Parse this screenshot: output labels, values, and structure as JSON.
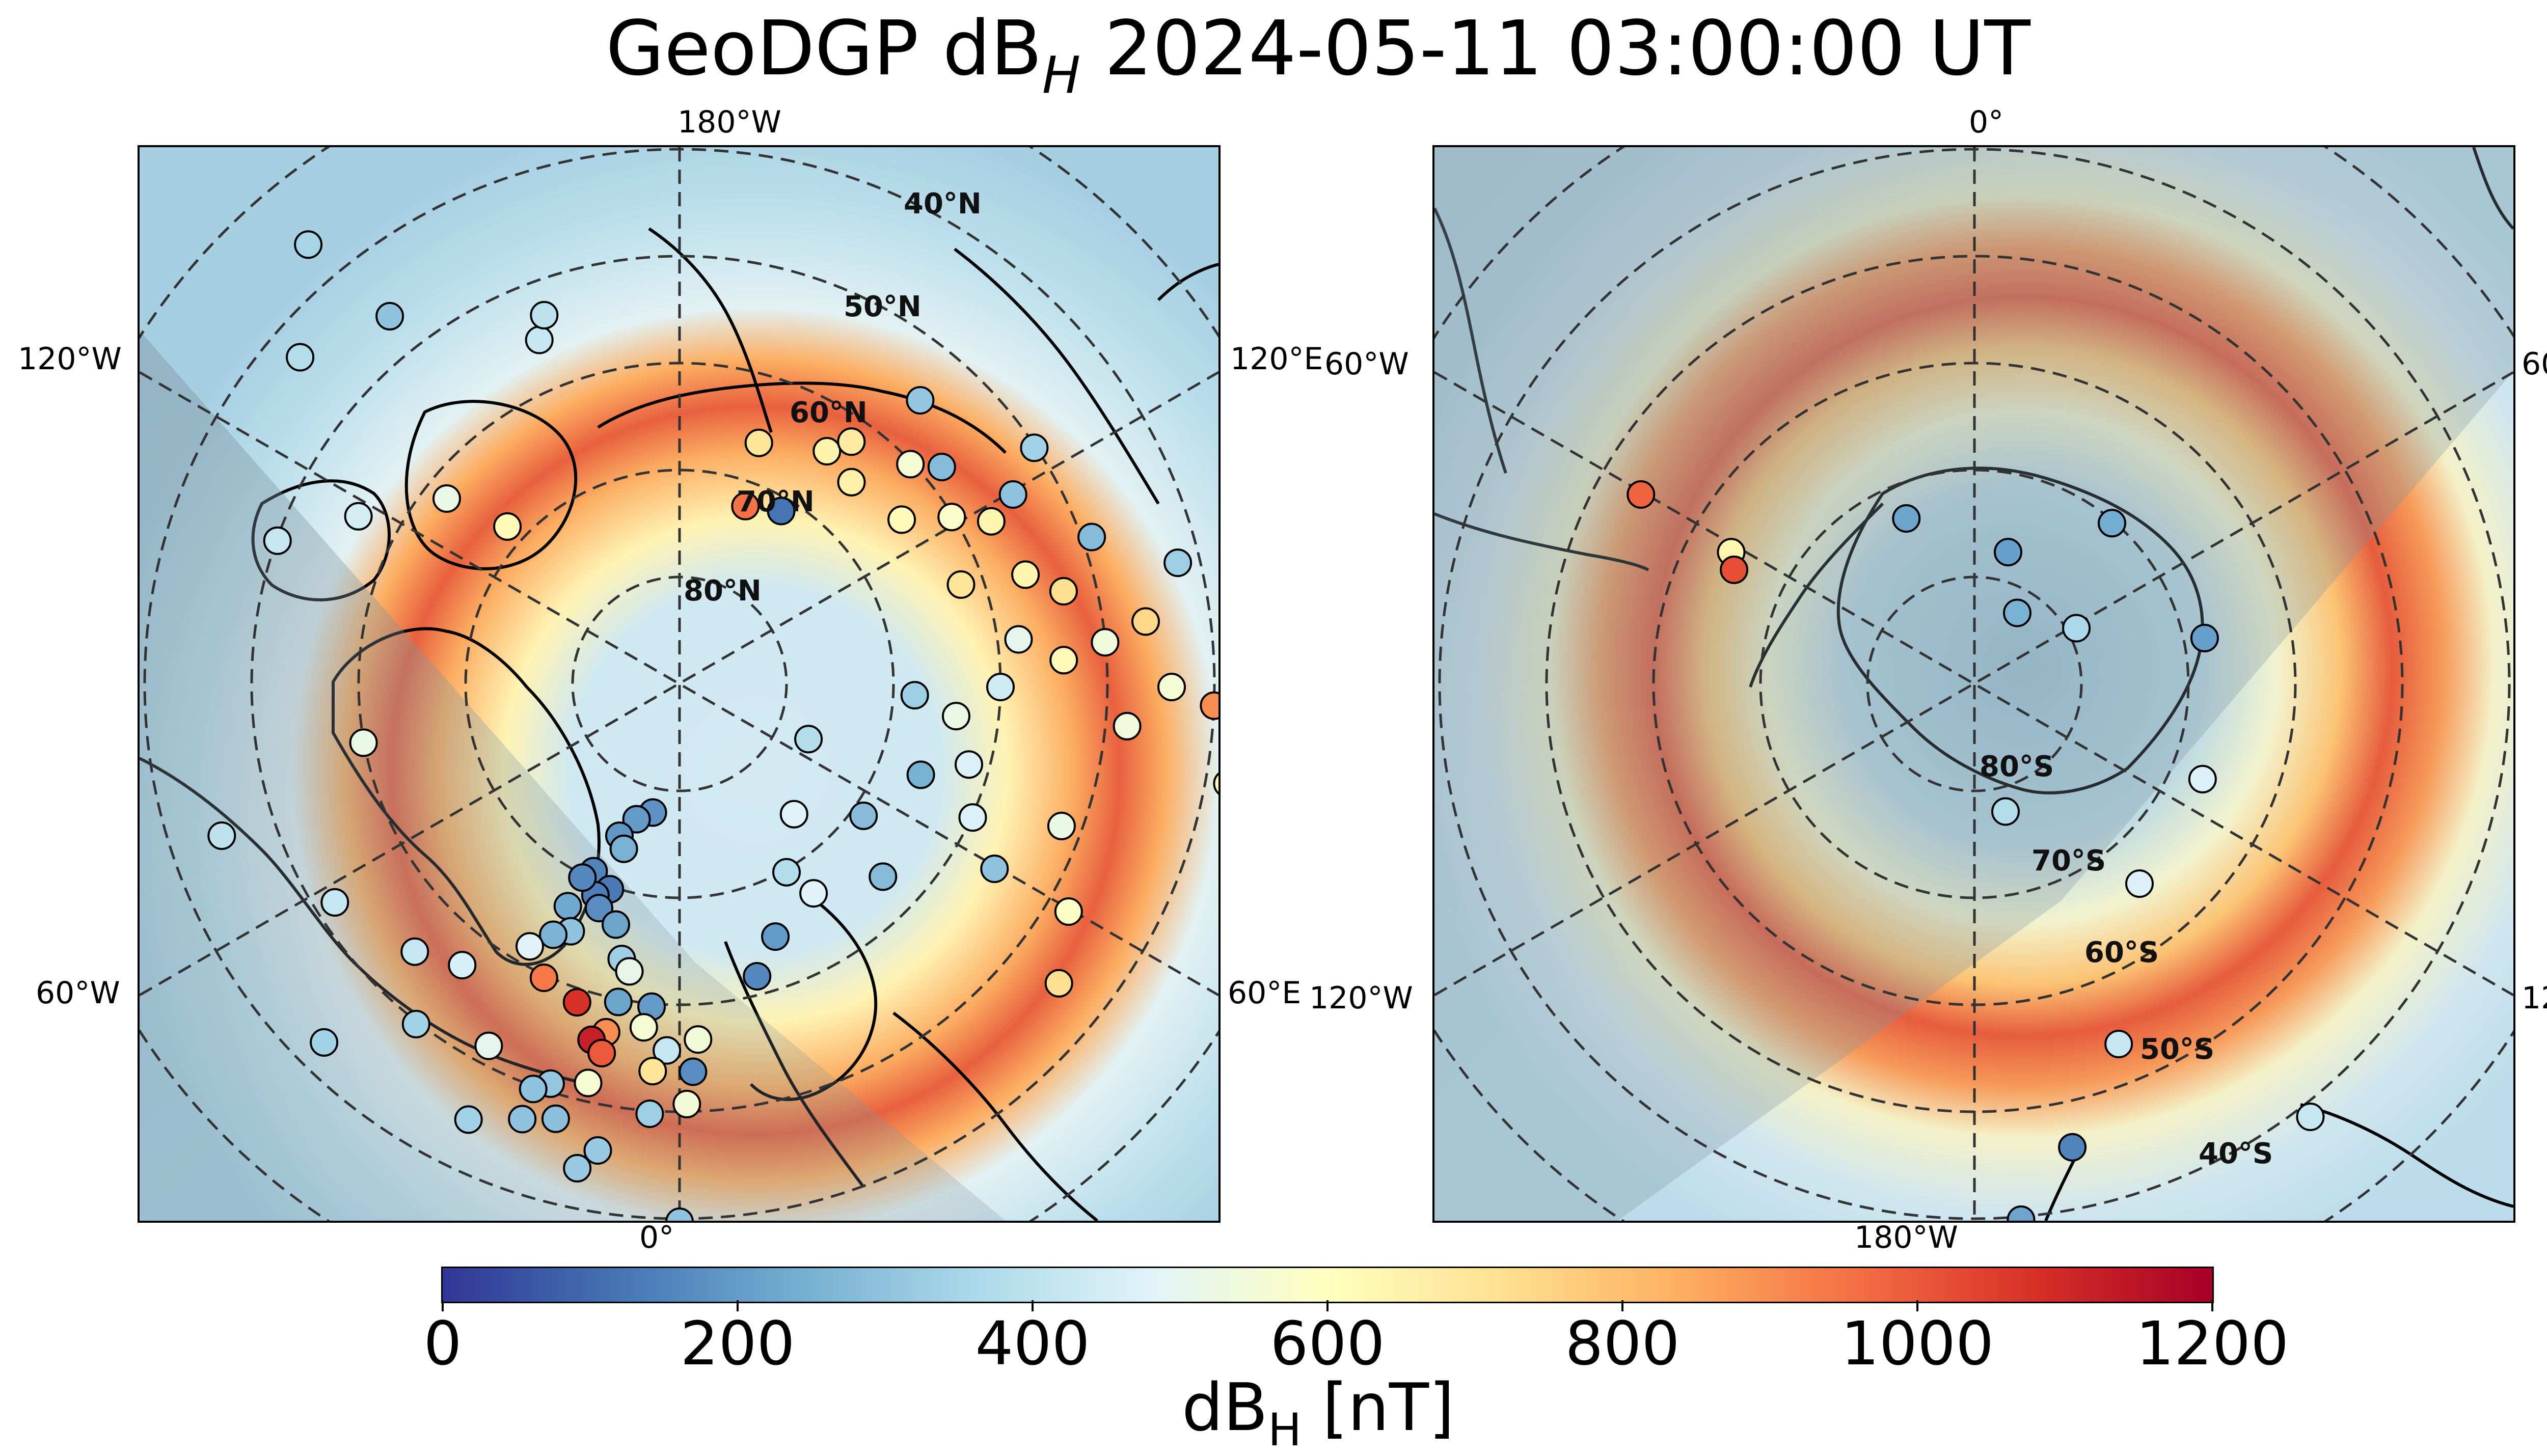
{
  "title": {
    "main": "GeoDGP dB",
    "subscript": "H",
    "timestamp": "2024-05-11 03:00:00 UT"
  },
  "colorbar": {
    "label_main": "dB",
    "label_subscript": "H",
    "label_unit": " [nT]",
    "range": [
      0,
      1200
    ],
    "ticks": [
      "0",
      "200",
      "400",
      "600",
      "800",
      "1000",
      "1200"
    ],
    "colors": [
      "#313695",
      "#4575b4",
      "#74add1",
      "#abd9e9",
      "#e0f3f8",
      "#ffffbf",
      "#fee090",
      "#fdae61",
      "#f46d43",
      "#d73027",
      "#a50026"
    ]
  },
  "maps": [
    {
      "hemisphere": "north",
      "lon_labels": {
        "top": "180°W",
        "bottom": "0°",
        "upper_left": "120°W",
        "upper_right": "120°E",
        "lower_left": "60°W",
        "lower_right": "60°E"
      },
      "lat_labels": [
        "80°N",
        "70°N",
        "60°N",
        "50°N",
        "40°N"
      ],
      "stations": [
        {
          "lat": 72,
          "lon": 200,
          "v": 950
        },
        {
          "lat": 71,
          "lon": 210,
          "v": 120
        },
        {
          "lat": 66,
          "lon": 198,
          "v": 700
        },
        {
          "lat": 64,
          "lon": 212,
          "v": 650
        },
        {
          "lat": 65,
          "lon": 220,
          "v": 660
        },
        {
          "lat": 62,
          "lon": 215,
          "v": 680
        },
        {
          "lat": 64,
          "lon": 233,
          "v": 620
        },
        {
          "lat": 60,
          "lon": 226,
          "v": 560
        },
        {
          "lat": 58,
          "lon": 230,
          "v": 280
        },
        {
          "lat": 55,
          "lon": 220,
          "v": 310
        },
        {
          "lat": 60,
          "lon": 238,
          "v": 580
        },
        {
          "lat": 57,
          "lon": 242,
          "v": 640
        },
        {
          "lat": 54,
          "lon": 240,
          "v": 300
        },
        {
          "lat": 50,
          "lon": 236,
          "v": 340
        },
        {
          "lat": 62,
          "lon": 250,
          "v": 700
        },
        {
          "lat": 56,
          "lon": 252,
          "v": 640
        },
        {
          "lat": 53,
          "lon": 256,
          "v": 720
        },
        {
          "lat": 49,
          "lon": 250,
          "v": 280
        },
        {
          "lat": 58,
          "lon": 262,
          "v": 500
        },
        {
          "lat": 54,
          "lon": 266,
          "v": 620
        },
        {
          "lat": 50,
          "lon": 264,
          "v": 540
        },
        {
          "lat": 46,
          "lon": 262,
          "v": 740
        },
        {
          "lat": 44,
          "lon": 270,
          "v": 560
        },
        {
          "lat": 42,
          "lon": 256,
          "v": 330
        },
        {
          "lat": 48,
          "lon": 275,
          "v": 540
        },
        {
          "lat": 40,
          "lon": 272,
          "v": 900
        },
        {
          "lat": 38,
          "lon": 280,
          "v": 620
        },
        {
          "lat": 60,
          "lon": 270,
          "v": 440
        },
        {
          "lat": 64,
          "lon": 276,
          "v": 520
        },
        {
          "lat": 68,
          "lon": 272,
          "v": 330
        },
        {
          "lat": 62,
          "lon": 285,
          "v": 470
        },
        {
          "lat": 66,
          "lon": 290,
          "v": 250
        },
        {
          "lat": 60,
          "lon": 294,
          "v": 470
        },
        {
          "lat": 56,
          "lon": 300,
          "v": 300
        },
        {
          "lat": 52,
          "lon": 290,
          "v": 520
        },
        {
          "lat": 48,
          "lon": 300,
          "v": 590
        },
        {
          "lat": 45,
          "lon": 308,
          "v": 720
        },
        {
          "lat": 69,
          "lon": 305,
          "v": 280
        },
        {
          "lat": 64,
          "lon": 313,
          "v": 280
        },
        {
          "lat": 77,
          "lon": 292,
          "v": 380
        },
        {
          "lat": 74,
          "lon": 318,
          "v": 480
        },
        {
          "lat": 70,
          "lon": 330,
          "v": 380
        },
        {
          "lat": 67,
          "lon": 327,
          "v": 480
        },
        {
          "lat": 65,
          "lon": 339,
          "v": 200
        },
        {
          "lat": 62,
          "lon": 345,
          "v": 160
        },
        {
          "lat": 78,
          "lon": 12,
          "v": 180
        },
        {
          "lat": 77,
          "lon": 18,
          "v": 200
        },
        {
          "lat": 75,
          "lon": 22,
          "v": 190
        },
        {
          "lat": 74,
          "lon": 19,
          "v": 250
        },
        {
          "lat": 71,
          "lon": 25,
          "v": 150
        },
        {
          "lat": 70,
          "lon": 19,
          "v": 130
        },
        {
          "lat": 69,
          "lon": 22,
          "v": 140
        },
        {
          "lat": 70,
          "lon": 27,
          "v": 160
        },
        {
          "lat": 68,
          "lon": 20,
          "v": 170
        },
        {
          "lat": 67,
          "lon": 27,
          "v": 230
        },
        {
          "lat": 67,
          "lon": 15,
          "v": 220
        },
        {
          "lat": 65,
          "lon": 24,
          "v": 300
        },
        {
          "lat": 64,
          "lon": 27,
          "v": 260
        },
        {
          "lat": 64,
          "lon": 12,
          "v": 330
        },
        {
          "lat": 63,
          "lon": 10,
          "v": 510
        },
        {
          "lat": 62,
          "lon": 30,
          "v": 480
        },
        {
          "lat": 60,
          "lon": 5,
          "v": 200
        },
        {
          "lat": 60,
          "lon": 11,
          "v": 220
        },
        {
          "lat": 60,
          "lon": 25,
          "v": 940
        },
        {
          "lat": 59,
          "lon": 18,
          "v": 1080
        },
        {
          "lat": 57,
          "lon": 12,
          "v": 900
        },
        {
          "lat": 56,
          "lon": 14,
          "v": 1120
        },
        {
          "lat": 55,
          "lon": 12,
          "v": 1000
        },
        {
          "lat": 58,
          "lon": 6,
          "v": 560
        },
        {
          "lat": 57,
          "lon": 357,
          "v": 550
        },
        {
          "lat": 56,
          "lon": 2,
          "v": 420
        },
        {
          "lat": 54,
          "lon": 4,
          "v": 700
        },
        {
          "lat": 54,
          "lon": 358,
          "v": 170
        },
        {
          "lat": 51,
          "lon": 359,
          "v": 550
        },
        {
          "lat": 50,
          "lon": 4,
          "v": 330
        },
        {
          "lat": 52,
          "lon": 13,
          "v": 560
        },
        {
          "lat": 51,
          "lon": 18,
          "v": 310
        },
        {
          "lat": 48,
          "lon": 16,
          "v": 290
        },
        {
          "lat": 50,
          "lon": 20,
          "v": 300
        },
        {
          "lat": 46,
          "lon": 10,
          "v": 320
        },
        {
          "lat": 47,
          "lon": 20,
          "v": 300
        },
        {
          "lat": 45,
          "lon": 26,
          "v": 340
        },
        {
          "lat": 44,
          "lon": 12,
          "v": 320
        },
        {
          "lat": 52,
          "lon": 28,
          "v": 500
        },
        {
          "lat": 57,
          "lon": 38,
          "v": 460
        },
        {
          "lat": 55,
          "lon": 45,
          "v": 420
        },
        {
          "lat": 50,
          "lon": 38,
          "v": 340
        },
        {
          "lat": 43,
          "lon": 45,
          "v": 340
        },
        {
          "lat": 40,
          "lon": 0,
          "v": 300
        },
        {
          "lat": 36,
          "lon": 358,
          "v": 260
        },
        {
          "lat": 52,
          "lon": 58,
          "v": 420
        },
        {
          "lat": 60,
          "lon": 80,
          "v": 520
        },
        {
          "lat": 45,
          "lon": 72,
          "v": 400
        },
        {
          "lat": 50,
          "lon": 110,
          "v": 420
        },
        {
          "lat": 56,
          "lon": 118,
          "v": 450
        },
        {
          "lat": 62,
          "lon": 129,
          "v": 520
        },
        {
          "lat": 68,
          "lon": 133,
          "v": 620
        },
        {
          "lat": 43,
          "lon": 131,
          "v": 380
        },
        {
          "lat": 36,
          "lon": 140,
          "v": 350
        },
        {
          "lat": 46,
          "lon": 142,
          "v": 300
        },
        {
          "lat": 55,
          "lon": 158,
          "v": 420
        },
        {
          "lat": 53,
          "lon": 160,
          "v": 400
        }
      ]
    },
    {
      "hemisphere": "south",
      "lon_labels": {
        "top": "0°",
        "bottom": "180°W",
        "upper_left": "60°W",
        "upper_right": "60°E",
        "lower_left": "120°W",
        "lower_right": "120°E"
      },
      "lat_labels": [
        "80°S",
        "70°S",
        "60°S",
        "50°S",
        "40°S"
      ],
      "stations": [
        {
          "lat": -54,
          "lon": 300,
          "v": 980
        },
        {
          "lat": -64,
          "lon": 299,
          "v": 640
        },
        {
          "lat": -65,
          "lon": 296,
          "v": 1020
        },
        {
          "lat": -73,
          "lon": 338,
          "v": 220
        },
        {
          "lat": -77,
          "lon": 14,
          "v": 210
        },
        {
          "lat": -70,
          "lon": 40,
          "v": 240
        },
        {
          "lat": -79,
          "lon": 60,
          "v": 360
        },
        {
          "lat": -82,
          "lon": 30,
          "v": 250
        },
        {
          "lat": -68,
          "lon": 78,
          "v": 210
        },
        {
          "lat": -67,
          "lon": 112,
          "v": 470
        },
        {
          "lat": -66,
          "lon": 140,
          "v": 470
        },
        {
          "lat": -78,
          "lon": 166,
          "v": 380
        },
        {
          "lat": -54,
          "lon": 158,
          "v": 420
        },
        {
          "lat": -46,
          "lon": 168,
          "v": 150
        },
        {
          "lat": -40,
          "lon": 175,
          "v": 220
        },
        {
          "lat": -39,
          "lon": 142,
          "v": 420
        }
      ]
    }
  ]
}
